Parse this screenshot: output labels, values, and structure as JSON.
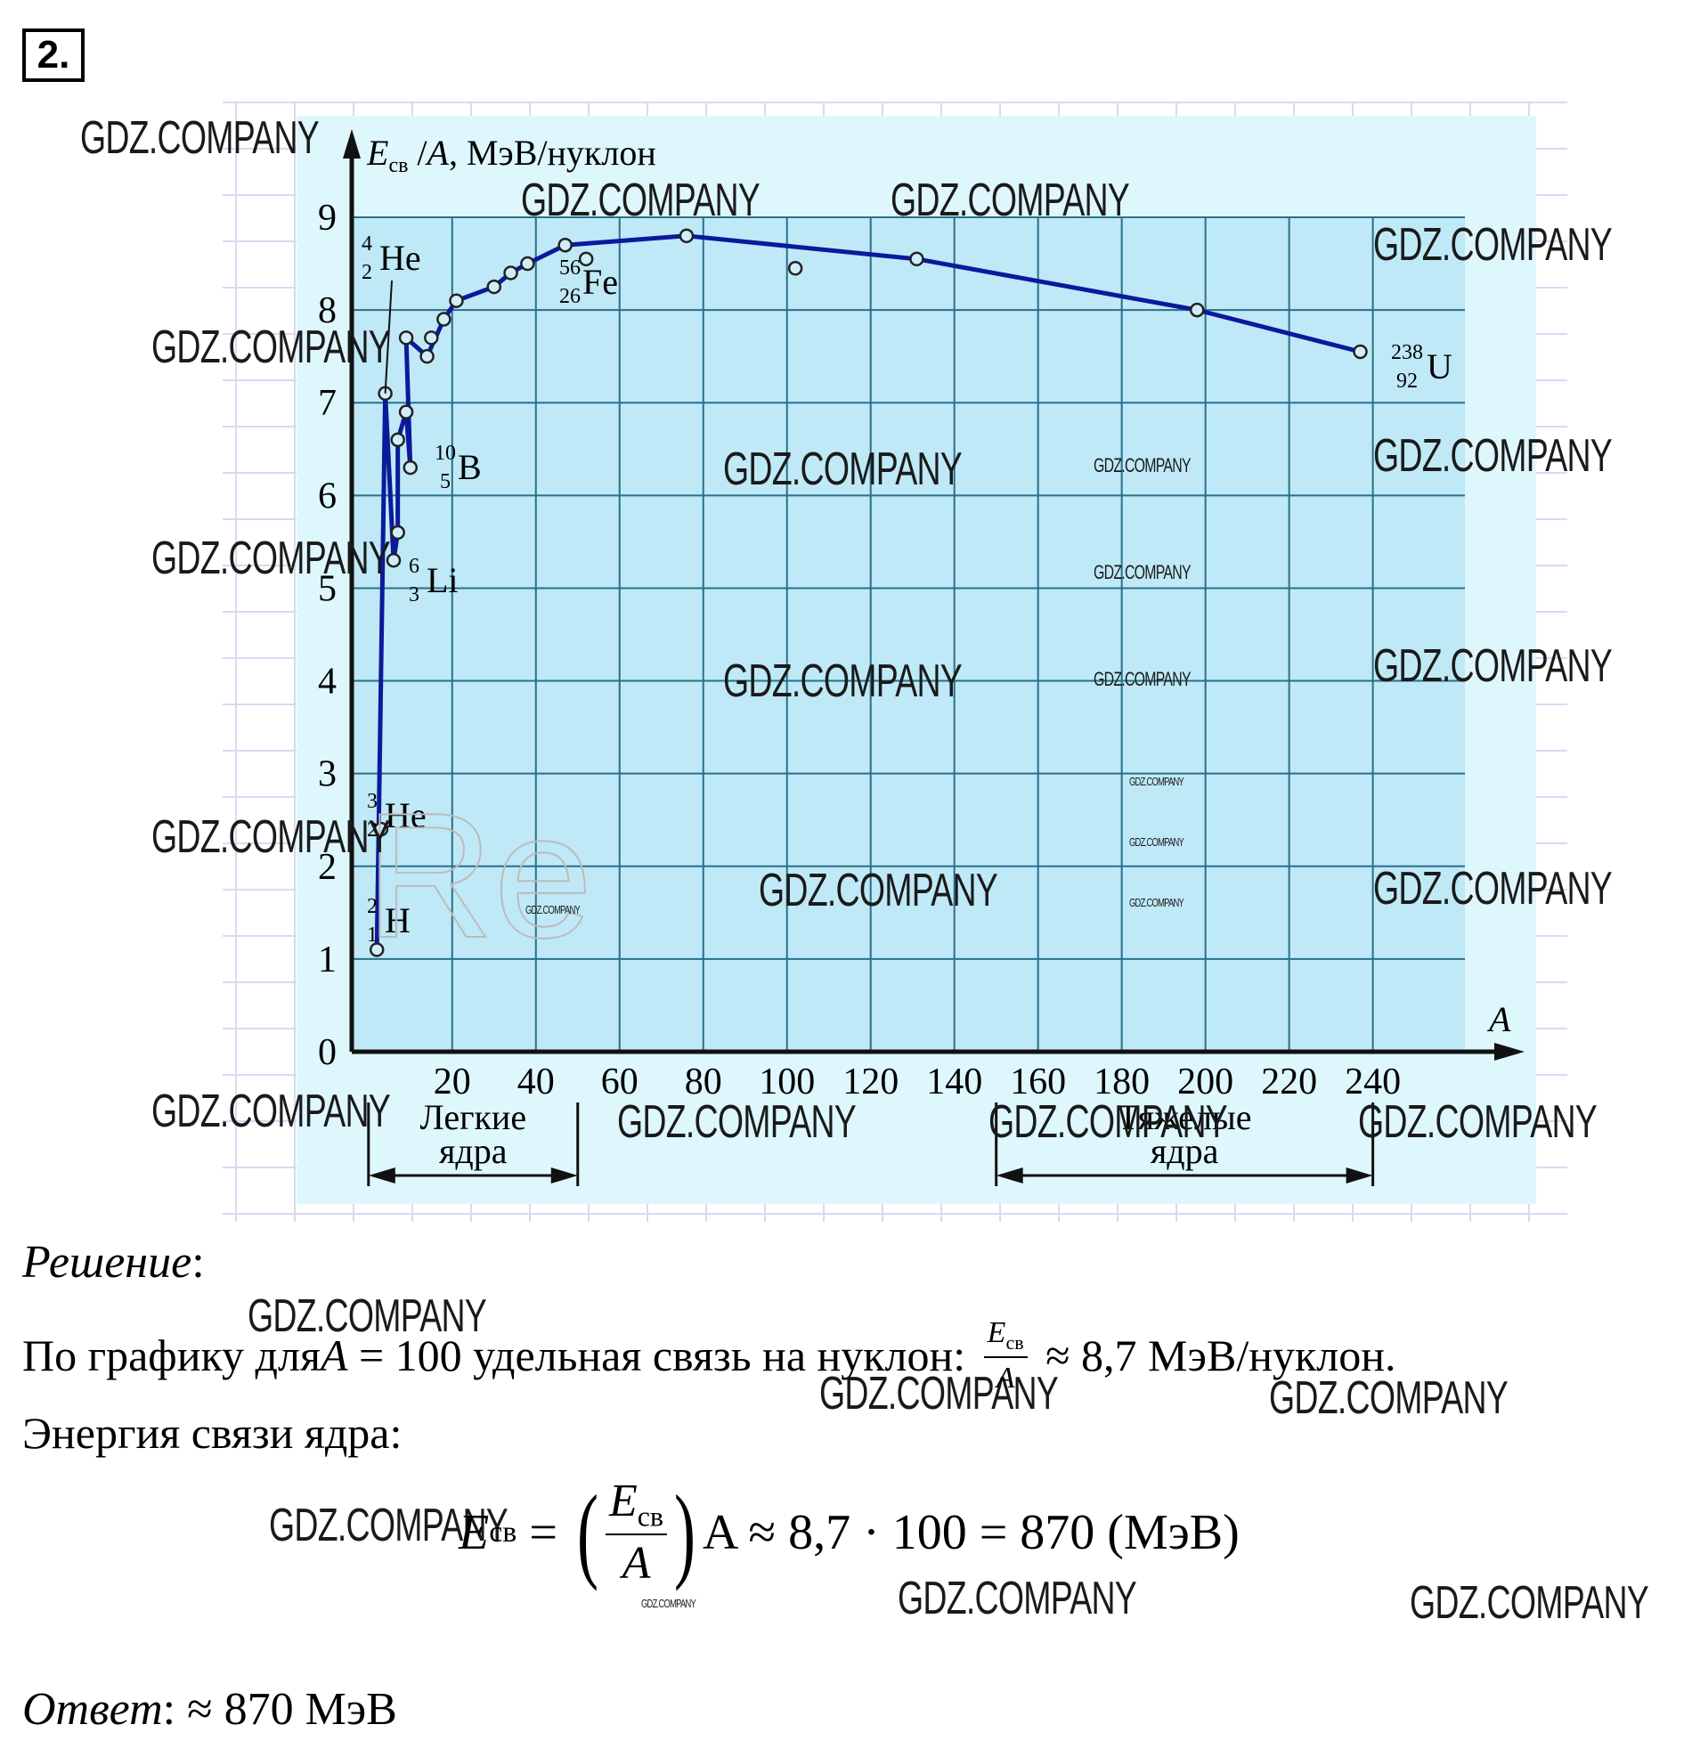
{
  "task": {
    "number": "2."
  },
  "chart_data": {
    "type": "line",
    "ylabel_parts": [
      "E",
      "св",
      " /",
      "A",
      ", МэВ/нуклон"
    ],
    "xlabel": "A",
    "x_ticks": [
      "20",
      "40",
      "60",
      "80",
      "100",
      "120",
      "140",
      "160",
      "180",
      "200",
      "220",
      "240"
    ],
    "y_ticks": [
      "0",
      "1",
      "2",
      "3",
      "4",
      "5",
      "6",
      "7",
      "8",
      "9"
    ],
    "xlim": [
      -4,
      262
    ],
    "ylim": [
      0,
      9
    ],
    "grid": true,
    "series": [
      {
        "points": [
          {
            "x": 2,
            "y": 1.1
          },
          {
            "x": 3,
            "y": 2.4
          },
          {
            "x": 4,
            "y": 7.1
          },
          {
            "x": 6,
            "y": 5.3
          },
          {
            "x": 7,
            "y": 5.6
          },
          {
            "x": 7,
            "y": 6.6
          },
          {
            "x": 9,
            "y": 6.9
          },
          {
            "x": 10,
            "y": 6.3
          },
          {
            "x": 9,
            "y": 7.7
          },
          {
            "x": 14,
            "y": 7.5
          },
          {
            "x": 15,
            "y": 7.7
          },
          {
            "x": 18,
            "y": 7.9
          },
          {
            "x": 21,
            "y": 8.1
          },
          {
            "x": 30,
            "y": 8.25
          },
          {
            "x": 34,
            "y": 8.4
          },
          {
            "x": 38,
            "y": 8.5
          },
          {
            "x": 47,
            "y": 8.7
          },
          {
            "x": 52,
            "y": 8.55
          },
          {
            "x": 76,
            "y": 8.8
          },
          {
            "x": 102,
            "y": 8.45
          },
          {
            "x": 131,
            "y": 8.55
          },
          {
            "x": 198,
            "y": 8.0
          },
          {
            "x": 237,
            "y": 7.55
          }
        ]
      }
    ],
    "annotations": [
      {
        "mass": "4",
        "charge": "2",
        "symbol": "He"
      },
      {
        "mass": "56",
        "charge": "26",
        "symbol": "Fe"
      },
      {
        "mass": "238",
        "charge": "92",
        "symbol": "U"
      },
      {
        "mass": "10",
        "charge": "5",
        "symbol": "B"
      },
      {
        "mass": "6",
        "charge": "3",
        "symbol": "Li"
      },
      {
        "mass": "3",
        "charge": "2",
        "symbol": "He"
      },
      {
        "mass": "2",
        "charge": "1",
        "symbol": "H"
      }
    ],
    "ranges": [
      {
        "label_line1": "Легкие",
        "label_line2": "ядра",
        "from": 0,
        "to": 50
      },
      {
        "label_line1": "Тяжелые",
        "label_line2": "ядра",
        "from": 150,
        "to": 240
      }
    ]
  },
  "watermarks": {
    "text": "GDZ.COMPANY",
    "faint_letters": "Re"
  },
  "solution": {
    "heading": "Решение",
    "line1_prefix": "По графику для ",
    "line1_var": "A",
    "line1_mid": " = 100 удельная связь на нуклон: ",
    "frac_num": "E",
    "frac_num_sub": "св",
    "frac_den": "A",
    "line1_suffix": " ≈ 8,7 МэВ/нуклон.",
    "line2": "Энергия связи ядра:",
    "formula_lhs": "E",
    "formula_lhs_sub": "св",
    "formula_eq": " = ",
    "formula_rhs": "A ≈ 8,7 · 100 = 870 (МэВ)",
    "answer_label": "Ответ",
    "answer_value": ": ≈ 870 МэВ"
  }
}
